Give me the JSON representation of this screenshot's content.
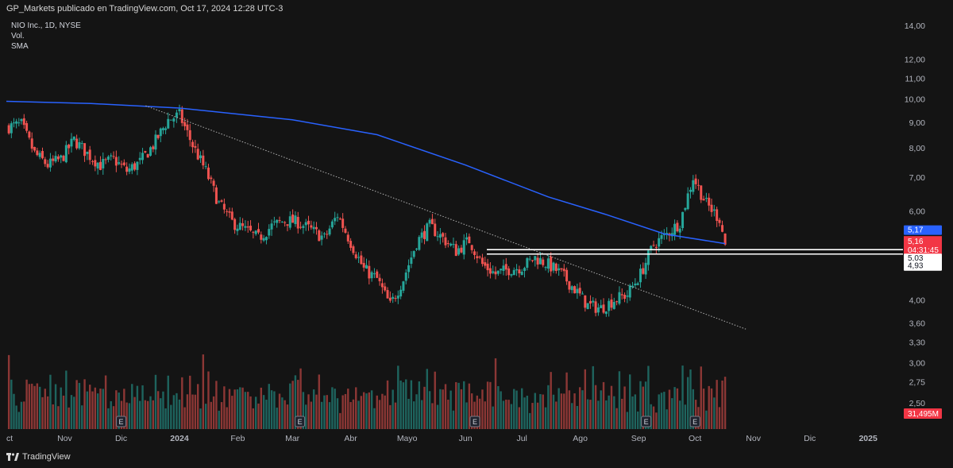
{
  "header": {
    "publisher": "GP_Markets publicado en TradingView.com, Oct 17, 2024 12:28 UTC-3"
  },
  "legend": {
    "symbol": "NIO Inc., 1D, NYSE",
    "vol": "Vol.",
    "sma": "SMA"
  },
  "footer": {
    "brand": "TradingView"
  },
  "colors": {
    "background": "#141414",
    "up": "#26a69a",
    "down": "#ef5350",
    "sma": "#2962ff",
    "last_price": "#f23645",
    "sma_badge": "#2962ff"
  },
  "chart_data": {
    "type": "candlestick",
    "scale": "log",
    "x_ticks": [
      "ct",
      "Nov",
      "Dic",
      "2024",
      "Feb",
      "Mar",
      "Abr",
      "Mayo",
      "Jun",
      "Jul",
      "Ago",
      "Sep",
      "Oct",
      "Nov",
      "Dic",
      "2025"
    ],
    "y_ticks": [
      "14,00",
      "12,00",
      "11,00",
      "10,00",
      "9,00",
      "8,00",
      "7,00",
      "6,00",
      "4,00",
      "3,60",
      "3,30",
      "3,00",
      "2,75",
      "2,50"
    ],
    "ylim": [
      2.3,
      14.2
    ],
    "close_path": [
      {
        "date": "2023-10-01",
        "close": 8.8
      },
      {
        "date": "2023-10-09",
        "close": 8.9
      },
      {
        "date": "2023-10-16",
        "close": 7.8
      },
      {
        "date": "2023-10-23",
        "close": 7.4
      },
      {
        "date": "2023-10-30",
        "close": 7.6
      },
      {
        "date": "2023-11-06",
        "close": 8.3
      },
      {
        "date": "2023-11-13",
        "close": 7.8
      },
      {
        "date": "2023-11-20",
        "close": 7.4
      },
      {
        "date": "2023-11-27",
        "close": 7.6
      },
      {
        "date": "2023-12-04",
        "close": 7.2
      },
      {
        "date": "2023-12-11",
        "close": 7.5
      },
      {
        "date": "2023-12-18",
        "close": 8.1
      },
      {
        "date": "2023-12-26",
        "close": 9.1
      },
      {
        "date": "2024-01-01",
        "close": 9.3
      },
      {
        "date": "2024-01-08",
        "close": 8.1
      },
      {
        "date": "2024-01-15",
        "close": 7.2
      },
      {
        "date": "2024-01-22",
        "close": 6.2
      },
      {
        "date": "2024-01-29",
        "close": 5.7
      },
      {
        "date": "2024-02-05",
        "close": 5.5
      },
      {
        "date": "2024-02-12",
        "close": 5.3
      },
      {
        "date": "2024-02-19",
        "close": 5.6
      },
      {
        "date": "2024-02-26",
        "close": 5.75
      },
      {
        "date": "2024-03-04",
        "close": 5.7
      },
      {
        "date": "2024-03-11",
        "close": 5.5
      },
      {
        "date": "2024-03-18",
        "close": 5.3
      },
      {
        "date": "2024-03-25",
        "close": 5.9
      },
      {
        "date": "2024-04-01",
        "close": 5.2
      },
      {
        "date": "2024-04-08",
        "close": 4.6
      },
      {
        "date": "2024-04-15",
        "close": 4.4
      },
      {
        "date": "2024-04-22",
        "close": 3.9
      },
      {
        "date": "2024-04-29",
        "close": 4.4
      },
      {
        "date": "2024-05-06",
        "close": 5.2
      },
      {
        "date": "2024-05-13",
        "close": 5.6
      },
      {
        "date": "2024-05-20",
        "close": 5.3
      },
      {
        "date": "2024-05-27",
        "close": 5.0
      },
      {
        "date": "2024-06-03",
        "close": 5.25
      },
      {
        "date": "2024-06-10",
        "close": 4.7
      },
      {
        "date": "2024-06-17",
        "close": 4.5
      },
      {
        "date": "2024-06-24",
        "close": 4.6
      },
      {
        "date": "2024-07-01",
        "close": 4.65
      },
      {
        "date": "2024-07-08",
        "close": 4.85
      },
      {
        "date": "2024-07-15",
        "close": 4.7
      },
      {
        "date": "2024-07-22",
        "close": 4.5
      },
      {
        "date": "2024-07-29",
        "close": 4.2
      },
      {
        "date": "2024-08-05",
        "close": 3.9
      },
      {
        "date": "2024-08-12",
        "close": 3.85
      },
      {
        "date": "2024-08-19",
        "close": 4.0
      },
      {
        "date": "2024-08-26",
        "close": 4.1
      },
      {
        "date": "2024-09-02",
        "close": 4.5
      },
      {
        "date": "2024-09-09",
        "close": 5.15
      },
      {
        "date": "2024-09-16",
        "close": 5.4
      },
      {
        "date": "2024-09-23",
        "close": 5.7
      },
      {
        "date": "2024-09-30",
        "close": 7.0
      },
      {
        "date": "2024-10-07",
        "close": 6.2
      },
      {
        "date": "2024-10-14",
        "close": 5.8
      },
      {
        "date": "2024-10-17",
        "close": 5.16
      }
    ],
    "sma_path": [
      {
        "date": "2023-10-01",
        "value": 9.9
      },
      {
        "date": "2023-11-15",
        "value": 9.8
      },
      {
        "date": "2024-01-01",
        "value": 9.6
      },
      {
        "date": "2024-03-01",
        "value": 9.1
      },
      {
        "date": "2024-04-15",
        "value": 8.5
      },
      {
        "date": "2024-06-01",
        "value": 7.4
      },
      {
        "date": "2024-07-15",
        "value": 6.4
      },
      {
        "date": "2024-08-15",
        "value": 5.9
      },
      {
        "date": "2024-09-15",
        "value": 5.4
      },
      {
        "date": "2024-10-17",
        "value": 5.17
      }
    ],
    "trendline": [
      {
        "date": "2023-12-14",
        "value": 9.7
      },
      {
        "date": "2024-10-28",
        "value": 3.5
      }
    ],
    "horizontal_levels": [
      5.03,
      4.93
    ],
    "price_badges": [
      {
        "label": "5,17",
        "role": "sma"
      },
      {
        "label": "5,16",
        "role": "last"
      },
      {
        "label": "04:31:45",
        "role": "countdown"
      },
      {
        "label": "5,03",
        "role": "level"
      },
      {
        "label": "4,93",
        "role": "level"
      },
      {
        "label": "31,495M",
        "role": "volume"
      }
    ],
    "earnings_markers": [
      {
        "date": "2023-12-01",
        "label": "E"
      },
      {
        "date": "2024-03-05",
        "label": "E"
      },
      {
        "date": "2024-06-06",
        "label": "E"
      },
      {
        "date": "2024-09-05",
        "label": "E"
      },
      {
        "date": "2024-10-01",
        "label": "E"
      }
    ]
  }
}
